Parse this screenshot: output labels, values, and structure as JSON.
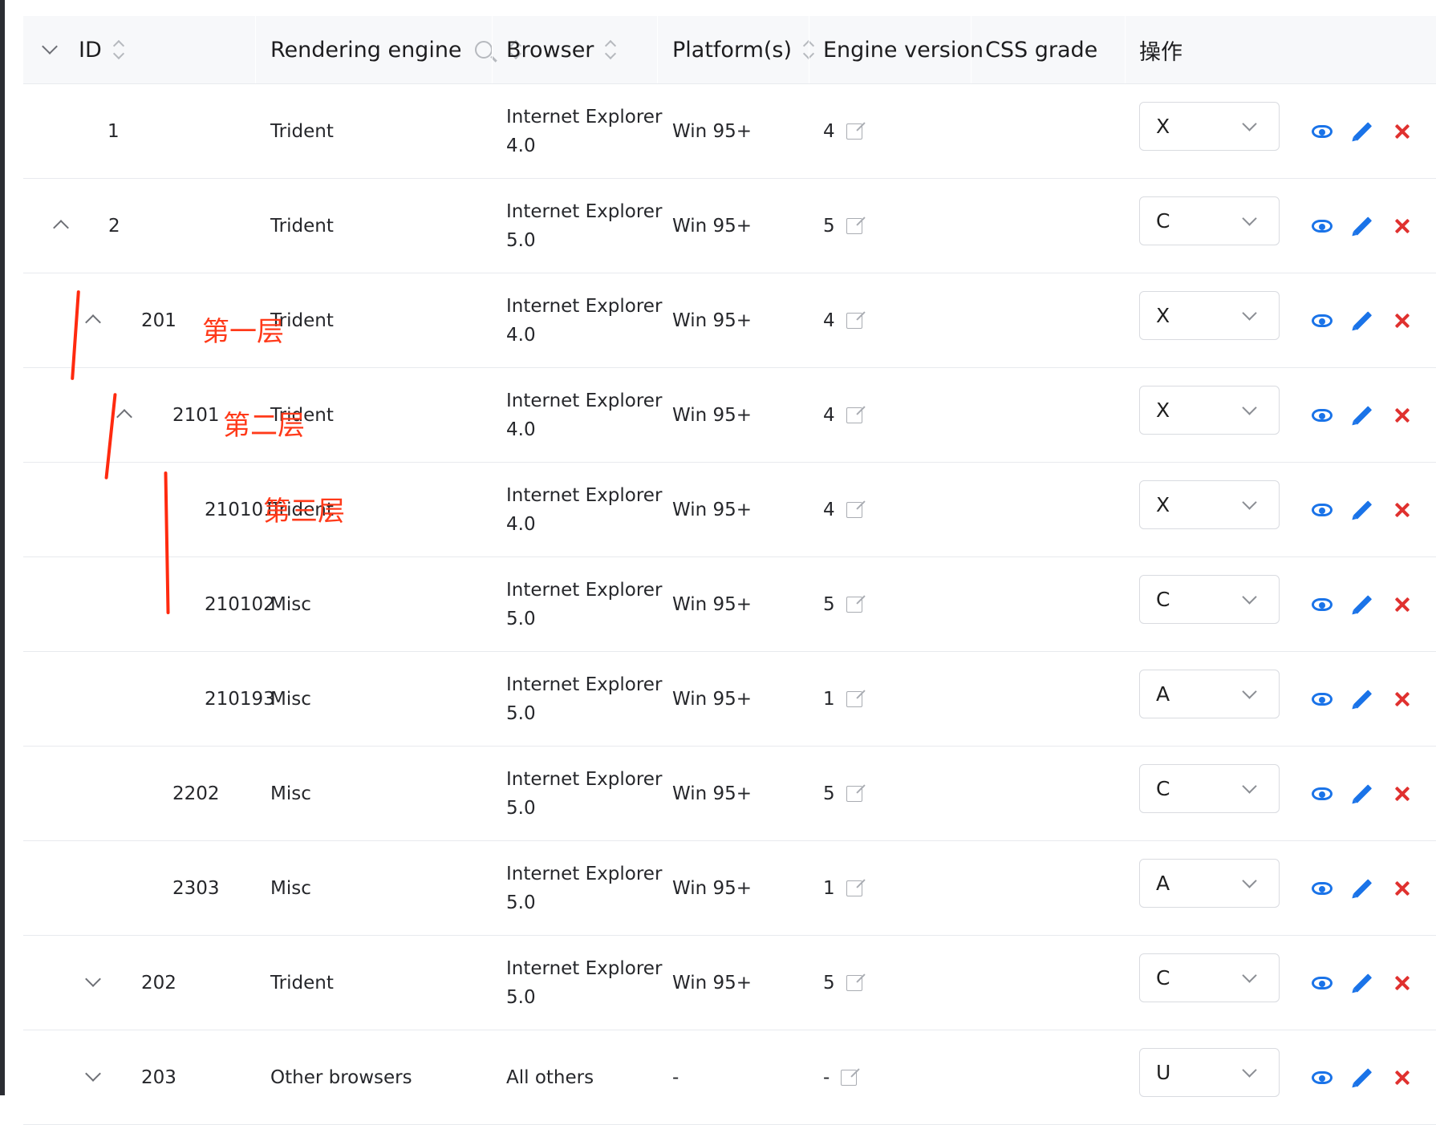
{
  "header": {
    "id": "ID",
    "engine": "Rendering engine",
    "browser": "Browser",
    "platform": "Platform(s)",
    "version": "Engine version",
    "grade": "CSS grade",
    "actions": "操作"
  },
  "rows": [
    {
      "id": "1",
      "engine": "Trident",
      "browser1": "Internet Explorer",
      "browser2": "4.0",
      "platform": "Win 95+",
      "version": "4",
      "grade": "X"
    },
    {
      "id": "2",
      "engine": "Trident",
      "browser1": "Internet Explorer",
      "browser2": "5.0",
      "platform": "Win 95+",
      "version": "5",
      "grade": "C"
    },
    {
      "id": "201",
      "engine": "Trident",
      "browser1": "Internet Explorer",
      "browser2": "4.0",
      "platform": "Win 95+",
      "version": "4",
      "grade": "X"
    },
    {
      "id": "2101",
      "engine": "Trident",
      "browser1": "Internet Explorer",
      "browser2": "4.0",
      "platform": "Win 95+",
      "version": "4",
      "grade": "X"
    },
    {
      "id": "210101",
      "engine": "Trident",
      "browser1": "Internet Explorer",
      "browser2": "4.0",
      "platform": "Win 95+",
      "version": "4",
      "grade": "X"
    },
    {
      "id": "210102",
      "engine": "Misc",
      "browser1": "Internet Explorer",
      "browser2": "5.0",
      "platform": "Win 95+",
      "version": "5",
      "grade": "C"
    },
    {
      "id": "210193",
      "engine": "Misc",
      "browser1": "Internet Explorer",
      "browser2": "5.0",
      "platform": "Win 95+",
      "version": "1",
      "grade": "A"
    },
    {
      "id": "2202",
      "engine": "Misc",
      "browser1": "Internet Explorer",
      "browser2": "5.0",
      "platform": "Win 95+",
      "version": "5",
      "grade": "C"
    },
    {
      "id": "2303",
      "engine": "Misc",
      "browser1": "Internet Explorer",
      "browser2": "5.0",
      "platform": "Win 95+",
      "version": "1",
      "grade": "A"
    },
    {
      "id": "202",
      "engine": "Trident",
      "browser1": "Internet Explorer",
      "browser2": "5.0",
      "platform": "Win 95+",
      "version": "5",
      "grade": "C"
    },
    {
      "id": "203",
      "engine": "Other browsers",
      "browser1": "All others",
      "browser2": "",
      "platform": "-",
      "version": "-",
      "grade": "U"
    }
  ],
  "annotations": {
    "level1": "第一层",
    "level2": "第二层",
    "level3": "第三层"
  },
  "colors": {
    "action_blue": "#1a73e8",
    "delete_red": "#e0312f",
    "annotation_red": "#ff3a1a"
  }
}
